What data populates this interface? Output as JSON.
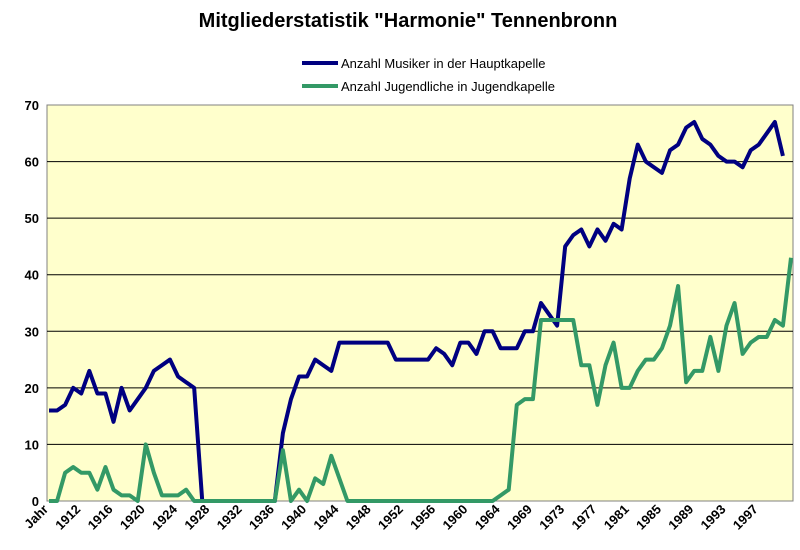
{
  "chart_data": {
    "type": "line",
    "title": "Mitgliederstatistik \"Harmonie\" Tennenbronn",
    "xlabel": "",
    "ylabel": "",
    "ylim": [
      0,
      70
    ],
    "yticks": [
      0,
      10,
      20,
      30,
      40,
      50,
      60,
      70
    ],
    "x_first_label": "Jahr",
    "x_tick_labels": [
      "Jahr",
      "1912",
      "1916",
      "1920",
      "1924",
      "1928",
      "1932",
      "1936",
      "1940",
      "1944",
      "1948",
      "1952",
      "1956",
      "1960",
      "1964",
      "1969",
      "1973",
      "1977",
      "1981",
      "1985",
      "1989",
      "1993",
      "1997"
    ],
    "x_tick_label_index": [
      0,
      4,
      8,
      12,
      16,
      20,
      24,
      28,
      32,
      36,
      40,
      44,
      48,
      52,
      56,
      60,
      64,
      68,
      72,
      76,
      80,
      84,
      88
    ],
    "legend_position": "top",
    "grid": "horizontal",
    "plot_background": "#ffffcc",
    "series": [
      {
        "name": "Anzahl Musiker  in der Hauptkapelle",
        "color": "#000080",
        "values": [
          16,
          16,
          17,
          20,
          19,
          23,
          19,
          19,
          14,
          20,
          16,
          18,
          20,
          23,
          24,
          25,
          22,
          21,
          20,
          0,
          0,
          0,
          0,
          0,
          0,
          0,
          0,
          0,
          0,
          12,
          18,
          22,
          22,
          25,
          24,
          23,
          28,
          28,
          28,
          28,
          28,
          28,
          28,
          25,
          25,
          25,
          25,
          25,
          27,
          26,
          24,
          28,
          28,
          26,
          30,
          30,
          27,
          27,
          27,
          30,
          30,
          35,
          33,
          31,
          45,
          47,
          48,
          45,
          48,
          46,
          49,
          48,
          57,
          63,
          60,
          59,
          58,
          62,
          63,
          66,
          67,
          64,
          63,
          61,
          60,
          60,
          59,
          62,
          63,
          65,
          67,
          61
        ]
      },
      {
        "name": "Anzahl Jugendliche in Jugendkapelle",
        "color": "#339966",
        "values": [
          0,
          0,
          5,
          6,
          5,
          5,
          2,
          6,
          2,
          1,
          1,
          0,
          10,
          5,
          1,
          1,
          1,
          2,
          0,
          0,
          0,
          0,
          0,
          0,
          0,
          0,
          0,
          0,
          0,
          9,
          0,
          2,
          0,
          4,
          3,
          8,
          4,
          0,
          0,
          0,
          0,
          0,
          0,
          0,
          0,
          0,
          0,
          0,
          0,
          0,
          0,
          0,
          0,
          0,
          0,
          0,
          1,
          2,
          17,
          18,
          18,
          32,
          32,
          32,
          32,
          32,
          24,
          24,
          17,
          24,
          28,
          20,
          20,
          23,
          25,
          25,
          27,
          31,
          38,
          21,
          23,
          23,
          29,
          23,
          31,
          35,
          26,
          28,
          29,
          29,
          32,
          31,
          43
        ]
      }
    ]
  }
}
